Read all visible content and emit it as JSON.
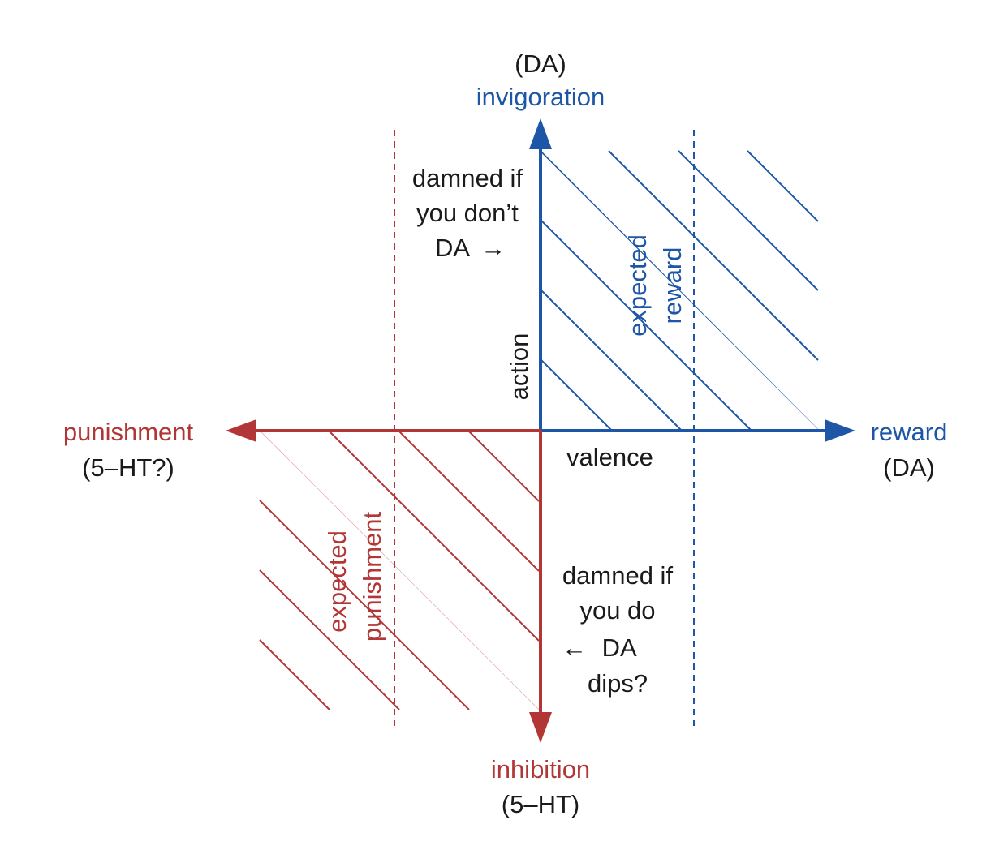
{
  "colors": {
    "reward": "#1d56a6",
    "punishment": "#b33636",
    "text": "#1a1a1a"
  },
  "labels": {
    "top_paren": "(DA)",
    "top_axis": "invigoration",
    "bottom_axis": "inhibition",
    "bottom_paren": "(5–HT)",
    "left_axis": "punishment",
    "left_paren": "(5–HT?)",
    "right_axis": "reward",
    "right_paren": "(DA)",
    "vertical_axis_name": "action",
    "horizontal_axis_name": "valence",
    "damned_dont": [
      "damned if",
      "you don’t",
      "DA"
    ],
    "damned_do": [
      "damned if",
      "you do",
      "DA",
      "dips?"
    ],
    "arrow_right": "→",
    "arrow_left": "←",
    "expected_reward": [
      "expected",
      "reward"
    ],
    "expected_punishment": [
      "expected",
      "punishment"
    ]
  }
}
